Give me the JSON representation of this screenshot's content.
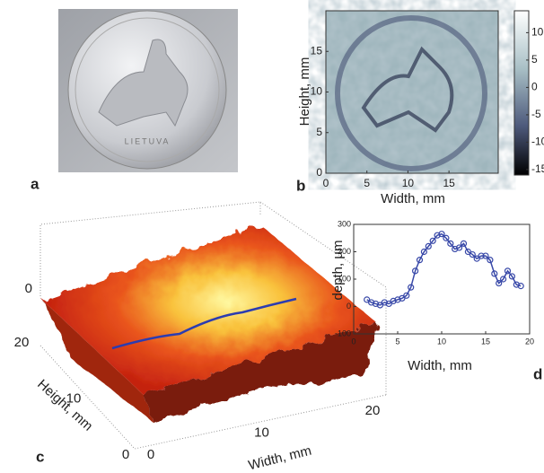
{
  "photo": {
    "label": "a",
    "caption": "LIETUVA"
  },
  "chart_data": [
    {
      "type": "heatmap",
      "label": "b",
      "xlabel": "Width, mm",
      "ylabel": "Height, mm",
      "xlim": [
        0,
        21
      ],
      "ylim": [
        0,
        20
      ],
      "xticks": [
        0,
        5,
        10,
        15
      ],
      "yticks": [
        0,
        5,
        10,
        15
      ],
      "colorbar": {
        "lim": [
          -16,
          14
        ],
        "ticks": [
          10,
          5,
          0,
          -5,
          -10,
          -15
        ]
      }
    },
    {
      "type": "surface",
      "label": "c",
      "xlabel": "Width, mm",
      "ylabel": "Height, mm",
      "xlim": [
        0,
        20
      ],
      "ylim": [
        0,
        20
      ],
      "xticks": [
        0,
        10,
        20
      ],
      "yticks": [
        0,
        10,
        20
      ],
      "zticks": [
        0
      ]
    },
    {
      "type": "line",
      "label": "d",
      "xlabel": "Width, mm",
      "ylabel": "depth, µm",
      "color": "#3848a8",
      "xlim": [
        0,
        20
      ],
      "ylim": [
        -100,
        300
      ],
      "xticks": [
        0,
        5,
        10,
        15,
        20
      ],
      "yticks": [
        -100,
        0,
        100,
        200,
        300
      ],
      "x": [
        1.5,
        2,
        2.5,
        3,
        3.5,
        4,
        4.5,
        5,
        5.5,
        6,
        6.5,
        7,
        7.5,
        8,
        8.5,
        9,
        9.5,
        10,
        10.5,
        11,
        11.5,
        12,
        12.5,
        13,
        13.5,
        14,
        14.5,
        15,
        15.5,
        16,
        16.5,
        17,
        17.5,
        18,
        18.5,
        19
      ],
      "values": [
        25,
        15,
        10,
        5,
        15,
        10,
        20,
        25,
        30,
        40,
        70,
        130,
        170,
        200,
        220,
        240,
        260,
        265,
        250,
        230,
        210,
        215,
        230,
        200,
        190,
        175,
        185,
        185,
        170,
        120,
        85,
        100,
        130,
        110,
        80,
        75
      ]
    }
  ]
}
